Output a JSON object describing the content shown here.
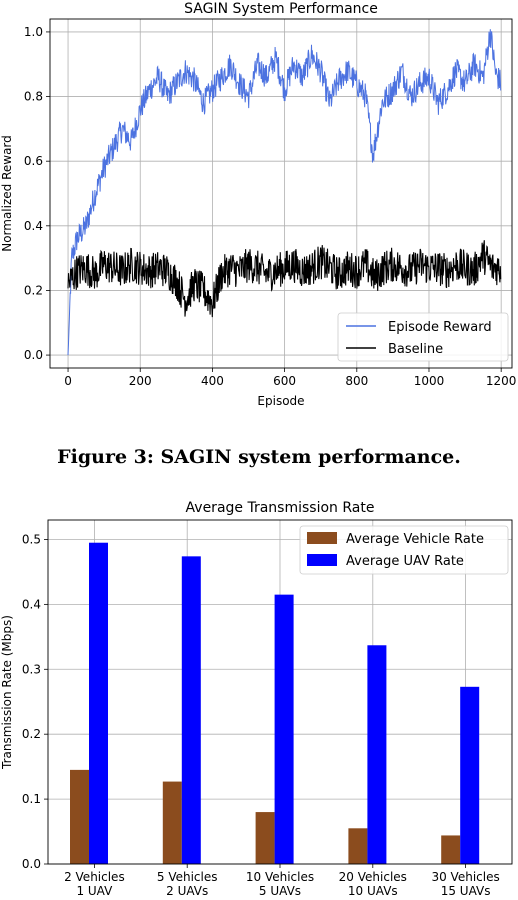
{
  "caption": "Figure 3: SAGIN system performance.",
  "chart_data": [
    {
      "type": "line",
      "title": "SAGIN System Performance",
      "xlabel": "Episode",
      "ylabel": "Normalized Reward",
      "xlim": [
        -50,
        1230
      ],
      "ylim": [
        -0.04,
        1.04
      ],
      "xticks": [
        0,
        200,
        400,
        600,
        800,
        1000,
        1200
      ],
      "xtick_labels": [
        "0",
        "200",
        "400",
        "600",
        "800",
        "1000",
        "1200"
      ],
      "yticks": [
        0.0,
        0.2,
        0.4,
        0.6,
        0.8,
        1.0
      ],
      "ytick_labels": [
        "0.0",
        "0.2",
        "0.4",
        "0.6",
        "0.8",
        "1.0"
      ],
      "grid": true,
      "legend_position": "bottom-right",
      "series": [
        {
          "name": "Episode Reward",
          "color": "#4c72e0",
          "x": [
            0,
            10,
            25,
            50,
            75,
            100,
            125,
            150,
            175,
            200,
            225,
            250,
            275,
            300,
            325,
            350,
            375,
            400,
            425,
            450,
            475,
            500,
            525,
            550,
            575,
            600,
            625,
            650,
            675,
            700,
            725,
            750,
            775,
            800,
            825,
            845,
            870,
            900,
            925,
            950,
            975,
            1000,
            1025,
            1050,
            1075,
            1100,
            1125,
            1150,
            1170,
            1185,
            1200
          ],
          "y": [
            0.0,
            0.3,
            0.36,
            0.4,
            0.5,
            0.58,
            0.64,
            0.7,
            0.66,
            0.76,
            0.82,
            0.86,
            0.8,
            0.84,
            0.88,
            0.85,
            0.78,
            0.82,
            0.86,
            0.9,
            0.84,
            0.8,
            0.9,
            0.86,
            0.92,
            0.82,
            0.9,
            0.86,
            0.93,
            0.88,
            0.78,
            0.85,
            0.88,
            0.84,
            0.8,
            0.62,
            0.78,
            0.82,
            0.88,
            0.8,
            0.84,
            0.86,
            0.78,
            0.82,
            0.88,
            0.84,
            0.9,
            0.86,
            1.0,
            0.87,
            0.84
          ]
        },
        {
          "name": "Baseline",
          "color": "#000000",
          "x": [
            0,
            25,
            50,
            75,
            100,
            125,
            150,
            175,
            200,
            225,
            250,
            275,
            300,
            325,
            350,
            375,
            400,
            425,
            450,
            475,
            500,
            525,
            550,
            575,
            600,
            625,
            650,
            675,
            700,
            725,
            750,
            775,
            800,
            825,
            850,
            875,
            900,
            925,
            950,
            975,
            1000,
            1025,
            1050,
            1075,
            1100,
            1125,
            1150,
            1175,
            1200
          ],
          "y": [
            0.22,
            0.26,
            0.27,
            0.25,
            0.28,
            0.27,
            0.26,
            0.28,
            0.27,
            0.26,
            0.27,
            0.26,
            0.23,
            0.17,
            0.22,
            0.2,
            0.16,
            0.25,
            0.27,
            0.26,
            0.28,
            0.27,
            0.25,
            0.26,
            0.27,
            0.28,
            0.26,
            0.27,
            0.29,
            0.27,
            0.25,
            0.27,
            0.26,
            0.28,
            0.24,
            0.27,
            0.28,
            0.27,
            0.26,
            0.28,
            0.27,
            0.27,
            0.26,
            0.28,
            0.27,
            0.26,
            0.31,
            0.27,
            0.27
          ]
        }
      ]
    },
    {
      "type": "bar",
      "title": "Average Transmission Rate",
      "ylabel": "Transmission Rate (Mbps)",
      "xlabel": "",
      "categories": [
        [
          "2 Vehicles",
          "1 UAV"
        ],
        [
          "5 Vehicles",
          "2 UAVs"
        ],
        [
          "10 Vehicles",
          "5 UAVs"
        ],
        [
          "20 Vehicles",
          "10 UAVs"
        ],
        [
          "30 Vehicles",
          "15 UAVs"
        ]
      ],
      "ylim": [
        0,
        0.53
      ],
      "yticks": [
        0.0,
        0.1,
        0.2,
        0.3,
        0.4,
        0.5
      ],
      "ytick_labels": [
        "0.0",
        "0.1",
        "0.2",
        "0.3",
        "0.4",
        "0.5"
      ],
      "grid": true,
      "legend_position": "top-right",
      "series": [
        {
          "name": "Average Vehicle Rate",
          "color": "#8b4c1e",
          "values": [
            0.145,
            0.127,
            0.08,
            0.055,
            0.044
          ]
        },
        {
          "name": "Average UAV Rate",
          "color": "#0000ff",
          "values": [
            0.495,
            0.474,
            0.415,
            0.337,
            0.273
          ]
        }
      ]
    }
  ]
}
